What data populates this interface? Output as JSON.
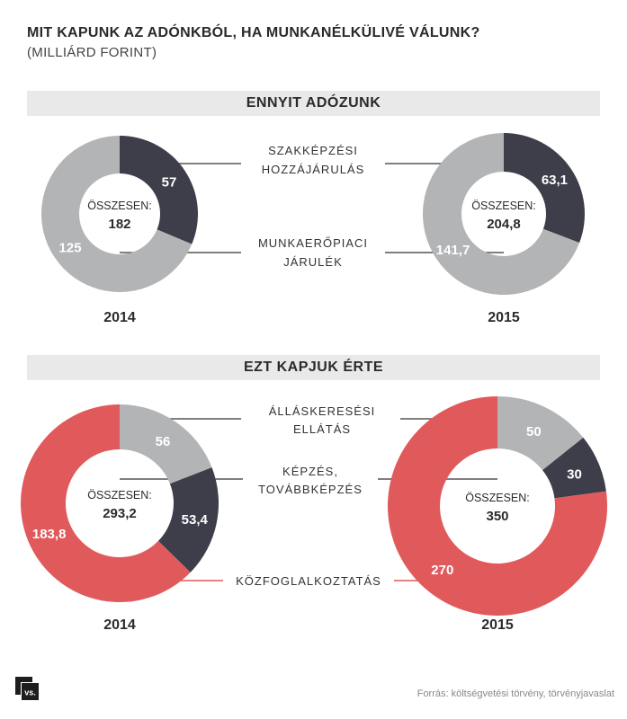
{
  "title": "MIT KAPUNK AZ ADÓNKBÓL, HA MUNKANÉLKÜLIVÉ VÁLUNK?",
  "subtitle": "(MILLIÁRD FORINT)",
  "source": "Forrás: költségvetési törvény, törvényjavaslat",
  "logo_text": "vs.",
  "colors": {
    "dark": "#3d3e4a",
    "grey": "#b3b4b6",
    "red": "#e05a5c",
    "line_grey": "#555555",
    "line_red": "#e05a5c"
  },
  "chart_data": [
    {
      "type": "pie",
      "section": "ENNYIT ADÓZUNK",
      "year": "2014",
      "total_label": "ÖSSZESEN:",
      "total_value": "182",
      "slices": [
        {
          "label": "SZAKKÉPZÉSI HOZZÁJÁRULÁS",
          "value": 57,
          "display": "57",
          "color": "#3d3e4a"
        },
        {
          "label": "MUNKAERŐPIACI JÁRULÉK",
          "value": 125,
          "display": "125",
          "color": "#b3b4b6"
        }
      ]
    },
    {
      "type": "pie",
      "section": "ENNYIT ADÓZUNK",
      "year": "2015",
      "total_label": "ÖSSZESEN:",
      "total_value": "204,8",
      "slices": [
        {
          "label": "SZAKKÉPZÉSI HOZZÁJÁRULÁS",
          "value": 63.1,
          "display": "63,1",
          "color": "#3d3e4a"
        },
        {
          "label": "MUNKAERŐPIACI JÁRULÉK",
          "value": 141.7,
          "display": "141,7",
          "color": "#b3b4b6"
        }
      ]
    },
    {
      "type": "pie",
      "section": "EZT KAPJUK ÉRTE",
      "year": "2014",
      "total_label": "ÖSSZESEN:",
      "total_value": "293,2",
      "slices": [
        {
          "label": "ÁLLÁSKERESÉSI ELLÁTÁS",
          "value": 56,
          "display": "56",
          "color": "#b3b4b6"
        },
        {
          "label": "KÉPZÉS, TOVÁBBKÉPZÉS",
          "value": 53.4,
          "display": "53,4",
          "color": "#3d3e4a"
        },
        {
          "label": "KÖZFOGLALKOZTATÁS",
          "value": 183.8,
          "display": "183,8",
          "color": "#e05a5c"
        }
      ]
    },
    {
      "type": "pie",
      "section": "EZT KAPJUK ÉRTE",
      "year": "2015",
      "total_label": "ÖSSZESEN:",
      "total_value": "350",
      "slices": [
        {
          "label": "ÁLLÁSKERESÉSI ELLÁTÁS",
          "value": 50,
          "display": "50",
          "color": "#b3b4b6"
        },
        {
          "label": "KÉPZÉS, TOVÁBBKÉPZÉS",
          "value": 30,
          "display": "30",
          "color": "#3d3e4a"
        },
        {
          "label": "KÖZFOGLALKOZTATÁS",
          "value": 270,
          "display": "270",
          "color": "#e05a5c"
        }
      ]
    }
  ],
  "sections": [
    {
      "title": "ENNYIT ADÓZUNK",
      "legend": [
        [
          "SZAKKÉPZÉSI",
          "HOZZÁJÁRULÁS"
        ],
        [
          "MUNKAERŐPIACI",
          "JÁRULÉK"
        ]
      ]
    },
    {
      "title": "EZT KAPJUK ÉRTE",
      "legend": [
        [
          "ÁLLÁSKERESÉSI",
          "ELLÁTÁS"
        ],
        [
          "KÉPZÉS,",
          "TOVÁBBKÉPZÉS"
        ],
        [
          "KÖZFOGLALKOZTATÁS"
        ]
      ]
    }
  ]
}
